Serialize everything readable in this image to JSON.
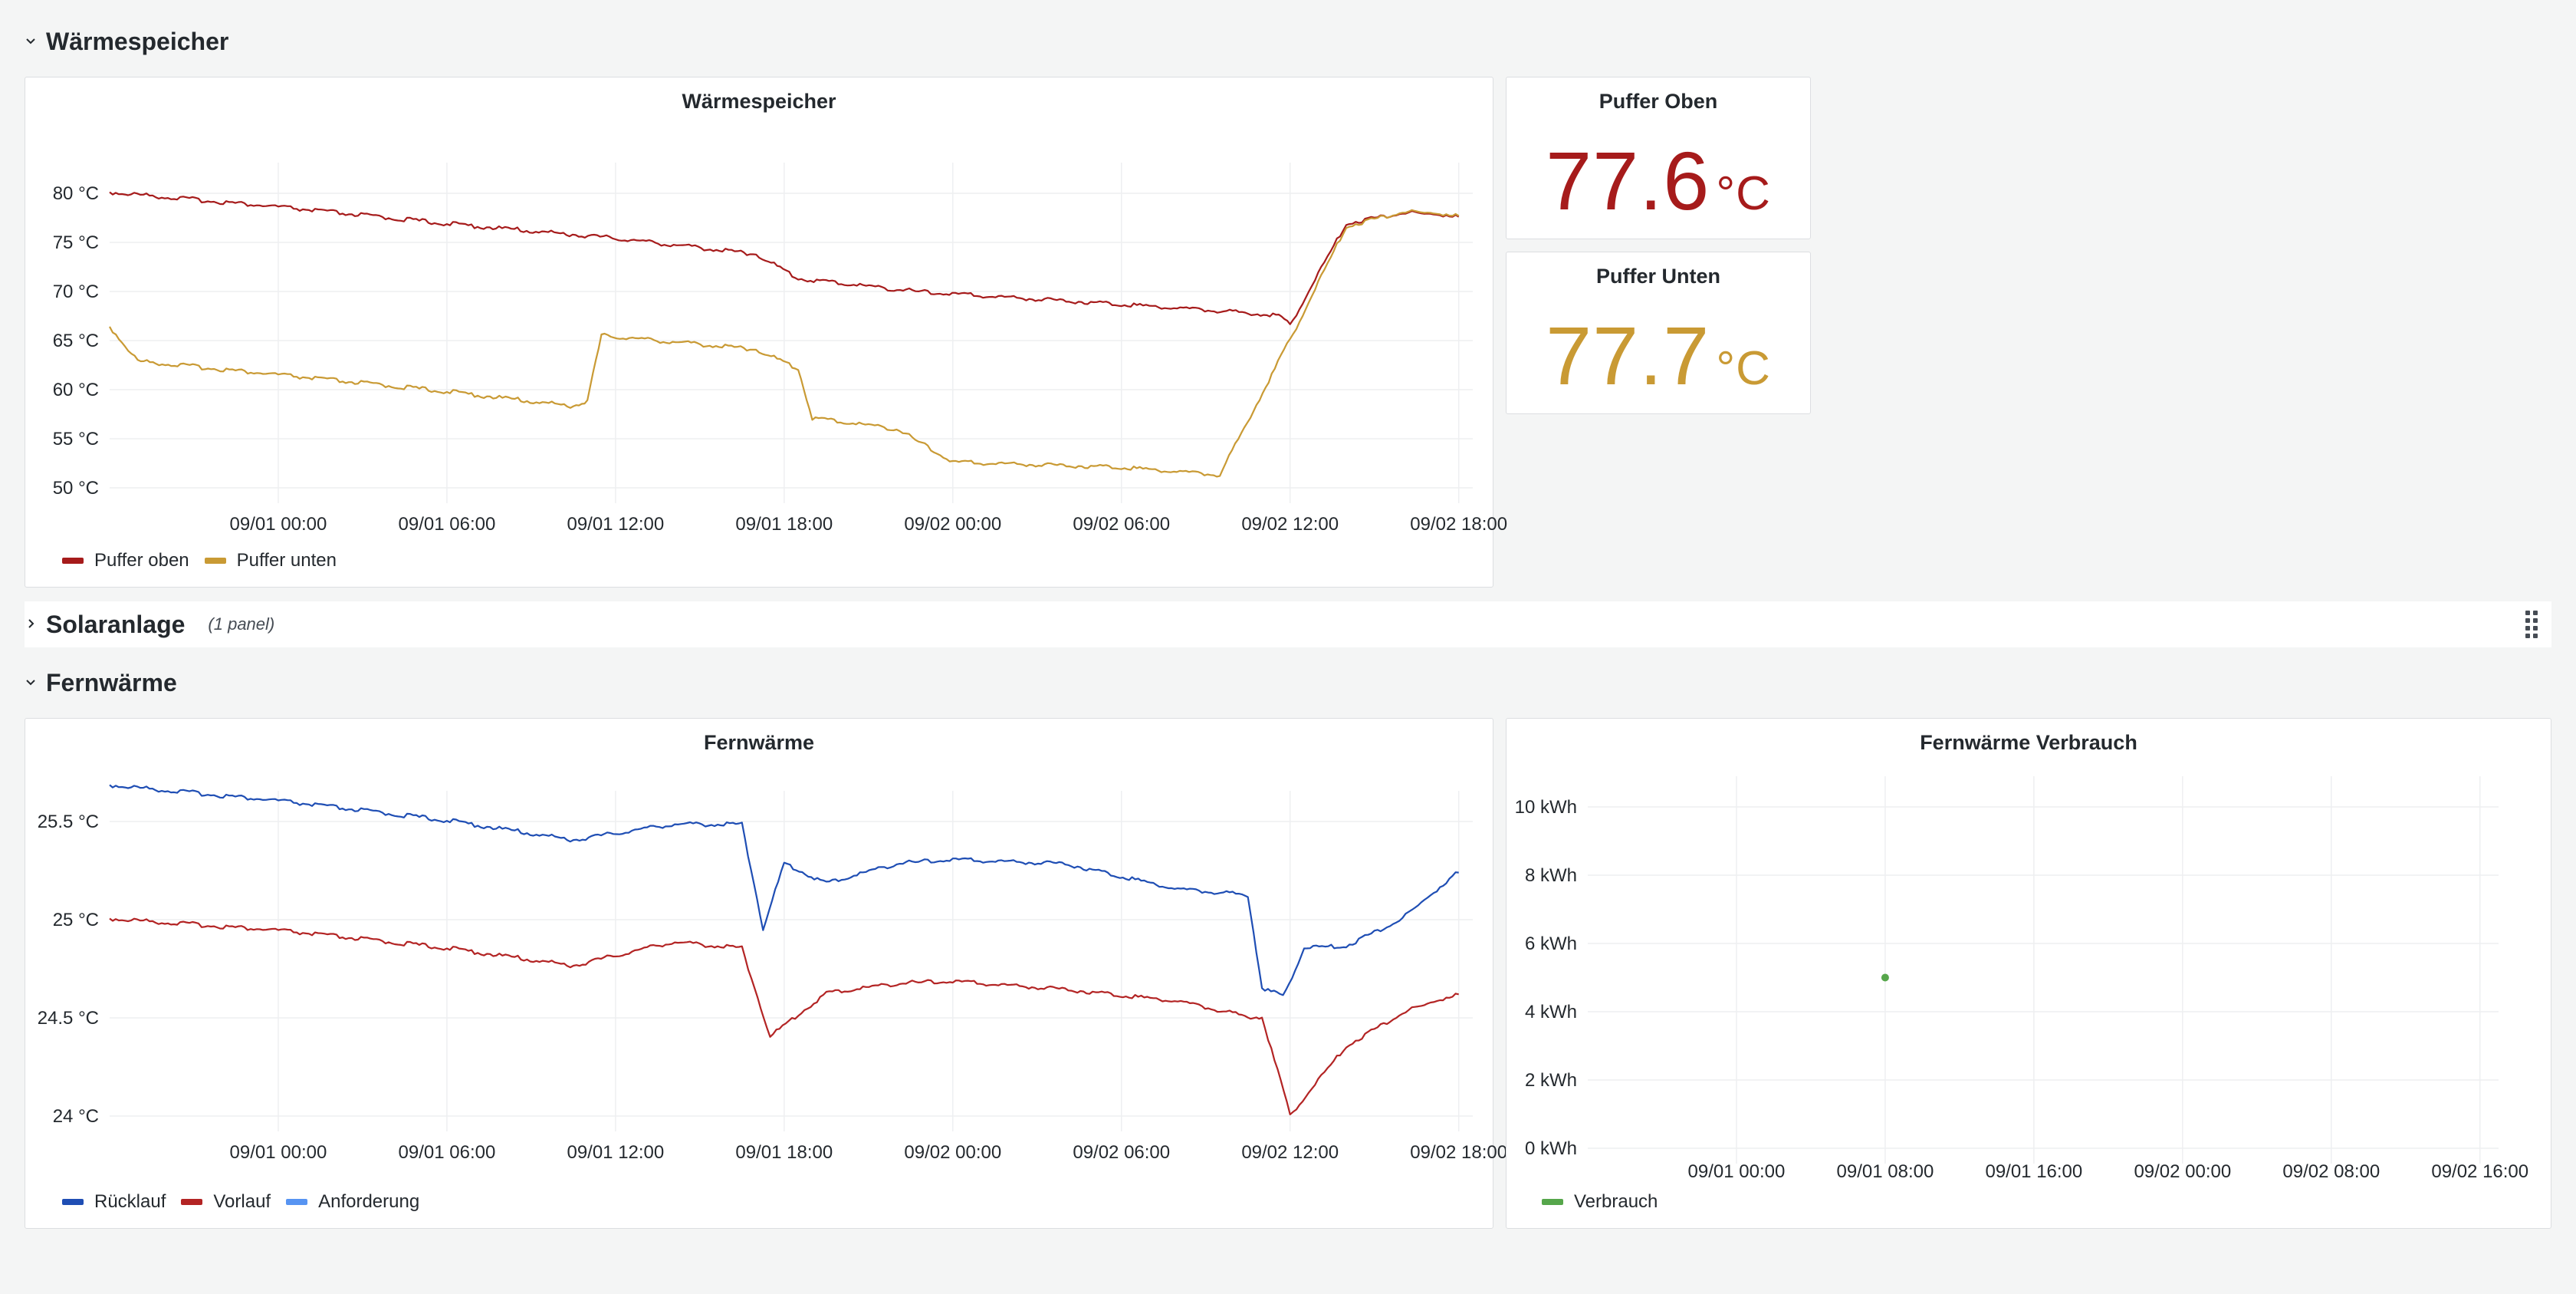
{
  "rows": {
    "waermespeicher": {
      "title": "Wärmespeicher"
    },
    "solaranlage": {
      "title": "Solaranlage",
      "subtitle": "(1 panel)"
    },
    "fernwaerme": {
      "title": "Fernwärme"
    }
  },
  "panels": {
    "waermespeicher_chart": {
      "title": "Wärmespeicher"
    },
    "puffer_oben": {
      "title": "Puffer Oben",
      "value": "77.6",
      "unit": "°C",
      "color": "#a61b1b"
    },
    "puffer_unten": {
      "title": "Puffer Unten",
      "value": "77.7",
      "unit": "°C",
      "color": "#c99a34"
    },
    "fernwaerme_chart": {
      "title": "Fernwärme"
    },
    "fernwaerme_verbrauch": {
      "title": "Fernwärme Verbrauch"
    }
  },
  "icons": {
    "row_expanded": "chevron-down-icon",
    "row_collapsed": "chevron-right-icon",
    "drag": "drag-handle-icon"
  },
  "chart_data": [
    {
      "type": "line",
      "title": "Wärmespeicher",
      "xlabel": "",
      "ylabel": "",
      "x_ticks": [
        "09/01 00:00",
        "09/01 06:00",
        "09/01 12:00",
        "09/01 18:00",
        "09/02 00:00",
        "09/02 06:00",
        "09/02 12:00",
        "09/02 18:00"
      ],
      "y_ticks": [
        "50 °C",
        "55 °C",
        "60 °C",
        "65 °C",
        "70 °C",
        "75 °C",
        "80 °C"
      ],
      "ylim": [
        50,
        80
      ],
      "grid": true,
      "legend": "bottom-left",
      "series": [
        {
          "name": "Puffer oben",
          "color": "#a61b1b",
          "x": [
            "08/31 18:00",
            "09/01 00:00",
            "09/01 06:00",
            "09/01 12:00",
            "09/01 17:00",
            "09/01 18:30",
            "09/01 23:00",
            "09/02 06:00",
            "09/02 11:30",
            "09/02 12:00",
            "09/02 14:00",
            "09/02 16:00",
            "09/02 18:00"
          ],
          "y": [
            80,
            78.5,
            76.8,
            75.3,
            73.7,
            71.2,
            69.8,
            68.6,
            67.5,
            66.5,
            76.8,
            77.9,
            77.6
          ]
        },
        {
          "name": "Puffer unten",
          "color": "#c99a34",
          "x": [
            "08/31 18:00",
            "08/31 19:00",
            "09/01 00:00",
            "09/01 06:00",
            "09/01 10:30",
            "09/01 11:00",
            "09/01 11:30",
            "09/01 17:00",
            "09/01 18:30",
            "09/01 19:00",
            "09/01 22:00",
            "09/02 00:00",
            "09/02 06:00",
            "09/02 09:30",
            "09/02 12:00",
            "09/02 14:00",
            "09/02 16:00",
            "09/02 18:00"
          ],
          "y": [
            66.3,
            62.8,
            61.4,
            59.7,
            58.2,
            58.8,
            65.4,
            64.0,
            62.0,
            57.0,
            55.9,
            52.5,
            52.0,
            51.2,
            65.0,
            76.5,
            78.0,
            77.7
          ]
        }
      ]
    },
    {
      "type": "line",
      "title": "Fernwärme",
      "xlabel": "",
      "ylabel": "",
      "x_ticks": [
        "09/01 00:00",
        "09/01 06:00",
        "09/01 12:00",
        "09/01 18:00",
        "09/02 00:00",
        "09/02 06:00",
        "09/02 12:00",
        "09/02 18:00"
      ],
      "y_ticks": [
        "24 °C",
        "24.5 °C",
        "25 °C",
        "25.5 °C"
      ],
      "ylim": [
        23.9,
        25.85
      ],
      "grid": true,
      "legend": "bottom-left",
      "series": [
        {
          "name": "Rücklauf",
          "color": "#1f4eb4",
          "x": [
            "08/31 18:00",
            "09/01 00:00",
            "09/01 06:00",
            "09/01 10:30",
            "09/01 14:00",
            "09/01 16:30",
            "09/01 17:15",
            "09/01 18:00",
            "09/01 19:30",
            "09/01 22:00",
            "09/02 00:00",
            "09/02 04:00",
            "09/02 08:00",
            "09/02 10:30",
            "09/02 11:00",
            "09/02 11:45",
            "09/02 12:30",
            "09/02 14:00",
            "09/02 16:00",
            "09/02 18:00"
          ],
          "y": [
            25.68,
            25.6,
            25.5,
            25.4,
            25.48,
            25.48,
            24.95,
            25.28,
            25.18,
            25.28,
            25.3,
            25.28,
            25.15,
            25.12,
            24.65,
            24.6,
            24.85,
            24.86,
            25.0,
            25.24
          ]
        },
        {
          "name": "Vorlauf",
          "color": "#b32424",
          "x": [
            "08/31 18:00",
            "09/01 00:00",
            "09/01 06:00",
            "09/01 10:30",
            "09/01 14:00",
            "09/01 16:30",
            "09/01 17:30",
            "09/01 19:30",
            "09/01 22:00",
            "09/02 00:00",
            "09/02 04:00",
            "09/02 08:00",
            "09/02 10:30",
            "09/02 11:00",
            "09/02 12:00",
            "09/02 14:00",
            "09/02 16:00",
            "09/02 18:00"
          ],
          "y": [
            25.0,
            24.94,
            24.85,
            24.76,
            24.88,
            24.85,
            24.4,
            24.62,
            24.67,
            24.68,
            24.64,
            24.58,
            24.5,
            24.5,
            24.0,
            24.35,
            24.52,
            24.62
          ]
        },
        {
          "name": "Anforderung",
          "color": "#5794f2",
          "x": [],
          "y": []
        }
      ]
    },
    {
      "type": "scatter",
      "title": "Fernwärme Verbrauch",
      "xlabel": "",
      "ylabel": "",
      "x_ticks": [
        "09/01 00:00",
        "09/01 08:00",
        "09/01 16:00",
        "09/02 00:00",
        "09/02 08:00",
        "09/02 16:00"
      ],
      "y_ticks": [
        "0 kWh",
        "2 kWh",
        "4 kWh",
        "6 kWh",
        "8 kWh",
        "10 kWh"
      ],
      "ylim": [
        0,
        10
      ],
      "grid": true,
      "legend": "bottom-left",
      "series": [
        {
          "name": "Verbrauch",
          "color": "#56a64b",
          "x": [
            "09/01 08:00"
          ],
          "y": [
            5.0
          ]
        }
      ]
    }
  ]
}
